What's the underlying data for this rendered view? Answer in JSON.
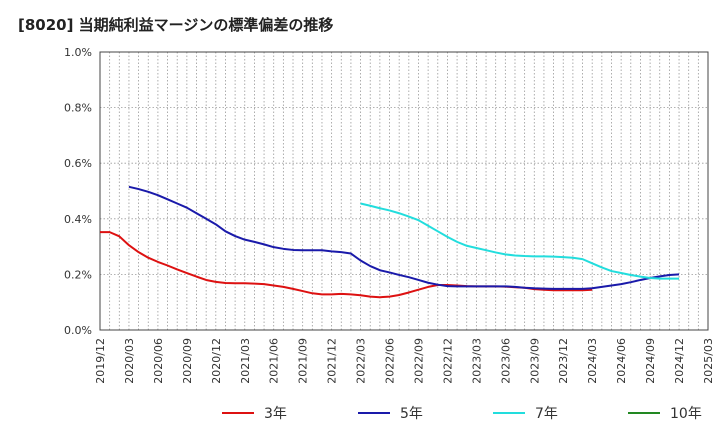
{
  "chart_data": {
    "type": "line",
    "title": "[8020]  当期純利益マージンの標準偏差の推移",
    "xlabel": "",
    "ylabel": "",
    "ylim": [
      0,
      1.0
    ],
    "yticks": [
      "0.0%",
      "0.2%",
      "0.4%",
      "0.6%",
      "0.8%",
      "1.0%"
    ],
    "xticks": [
      "2019/12",
      "2020/03",
      "2020/06",
      "2020/09",
      "2020/12",
      "2021/03",
      "2021/06",
      "2021/09",
      "2021/12",
      "2022/03",
      "2022/06",
      "2022/09",
      "2022/12",
      "2023/03",
      "2023/06",
      "2023/09",
      "2023/12",
      "2024/03",
      "2024/06",
      "2024/09",
      "2024/12",
      "2025/03"
    ],
    "grid": true,
    "legend_position": "bottom",
    "series": [
      {
        "name": "3年",
        "color": "#dd1111",
        "points": [
          [
            "2019/12",
            0.352
          ],
          [
            "2020/01",
            0.352
          ],
          [
            "2020/02",
            0.337
          ],
          [
            "2020/03",
            0.305
          ],
          [
            "2020/04",
            0.28
          ],
          [
            "2020/05",
            0.26
          ],
          [
            "2020/06",
            0.245
          ],
          [
            "2020/07",
            0.232
          ],
          [
            "2020/08",
            0.218
          ],
          [
            "2020/09",
            0.205
          ],
          [
            "2020/10",
            0.192
          ],
          [
            "2020/11",
            0.18
          ],
          [
            "2020/12",
            0.173
          ],
          [
            "2021/01",
            0.169
          ],
          [
            "2021/02",
            0.168
          ],
          [
            "2021/03",
            0.168
          ],
          [
            "2021/04",
            0.167
          ],
          [
            "2021/05",
            0.165
          ],
          [
            "2021/06",
            0.16
          ],
          [
            "2021/07",
            0.155
          ],
          [
            "2021/08",
            0.148
          ],
          [
            "2021/09",
            0.14
          ],
          [
            "2021/10",
            0.132
          ],
          [
            "2021/11",
            0.128
          ],
          [
            "2021/12",
            0.128
          ],
          [
            "2022/01",
            0.13
          ],
          [
            "2022/02",
            0.128
          ],
          [
            "2022/03",
            0.125
          ],
          [
            "2022/04",
            0.12
          ],
          [
            "2022/05",
            0.118
          ],
          [
            "2022/06",
            0.12
          ],
          [
            "2022/07",
            0.126
          ],
          [
            "2022/08",
            0.135
          ],
          [
            "2022/09",
            0.145
          ],
          [
            "2022/10",
            0.155
          ],
          [
            "2022/11",
            0.162
          ],
          [
            "2022/12",
            0.162
          ],
          [
            "2023/01",
            0.16
          ],
          [
            "2023/02",
            0.158
          ],
          [
            "2023/03",
            0.157
          ],
          [
            "2023/04",
            0.157
          ],
          [
            "2023/05",
            0.157
          ],
          [
            "2023/06",
            0.156
          ],
          [
            "2023/07",
            0.154
          ],
          [
            "2023/08",
            0.152
          ],
          [
            "2023/09",
            0.147
          ],
          [
            "2023/10",
            0.145
          ],
          [
            "2023/11",
            0.143
          ],
          [
            "2023/12",
            0.143
          ],
          [
            "2024/01",
            0.143
          ],
          [
            "2024/02",
            0.143
          ],
          [
            "2024/03",
            0.145
          ]
        ]
      },
      {
        "name": "5年",
        "color": "#1a1aaa",
        "points": [
          [
            "2020/03",
            0.515
          ],
          [
            "2020/04",
            0.507
          ],
          [
            "2020/05",
            0.497
          ],
          [
            "2020/06",
            0.485
          ],
          [
            "2020/07",
            0.47
          ],
          [
            "2020/08",
            0.455
          ],
          [
            "2020/09",
            0.44
          ],
          [
            "2020/10",
            0.42
          ],
          [
            "2020/11",
            0.4
          ],
          [
            "2020/12",
            0.38
          ],
          [
            "2021/01",
            0.355
          ],
          [
            "2021/02",
            0.338
          ],
          [
            "2021/03",
            0.325
          ],
          [
            "2021/04",
            0.317
          ],
          [
            "2021/05",
            0.308
          ],
          [
            "2021/06",
            0.298
          ],
          [
            "2021/07",
            0.292
          ],
          [
            "2021/08",
            0.288
          ],
          [
            "2021/09",
            0.287
          ],
          [
            "2021/10",
            0.287
          ],
          [
            "2021/11",
            0.287
          ],
          [
            "2021/12",
            0.283
          ],
          [
            "2022/01",
            0.28
          ],
          [
            "2022/02",
            0.275
          ],
          [
            "2022/03",
            0.25
          ],
          [
            "2022/04",
            0.23
          ],
          [
            "2022/05",
            0.215
          ],
          [
            "2022/06",
            0.207
          ],
          [
            "2022/07",
            0.198
          ],
          [
            "2022/08",
            0.19
          ],
          [
            "2022/09",
            0.18
          ],
          [
            "2022/10",
            0.17
          ],
          [
            "2022/11",
            0.163
          ],
          [
            "2022/12",
            0.158
          ],
          [
            "2023/01",
            0.157
          ],
          [
            "2023/02",
            0.157
          ],
          [
            "2023/03",
            0.157
          ],
          [
            "2023/04",
            0.157
          ],
          [
            "2023/05",
            0.157
          ],
          [
            "2023/06",
            0.157
          ],
          [
            "2023/07",
            0.155
          ],
          [
            "2023/08",
            0.152
          ],
          [
            "2023/09",
            0.15
          ],
          [
            "2023/10",
            0.149
          ],
          [
            "2023/11",
            0.148
          ],
          [
            "2023/12",
            0.148
          ],
          [
            "2024/01",
            0.148
          ],
          [
            "2024/02",
            0.148
          ],
          [
            "2024/03",
            0.15
          ],
          [
            "2024/04",
            0.155
          ],
          [
            "2024/05",
            0.16
          ],
          [
            "2024/06",
            0.165
          ],
          [
            "2024/07",
            0.172
          ],
          [
            "2024/08",
            0.18
          ],
          [
            "2024/09",
            0.187
          ],
          [
            "2024/10",
            0.193
          ],
          [
            "2024/11",
            0.198
          ],
          [
            "2024/12",
            0.2
          ]
        ]
      },
      {
        "name": "7年",
        "color": "#22dddd",
        "points": [
          [
            "2022/03",
            0.455
          ],
          [
            "2022/04",
            0.447
          ],
          [
            "2022/05",
            0.438
          ],
          [
            "2022/06",
            0.43
          ],
          [
            "2022/07",
            0.42
          ],
          [
            "2022/08",
            0.408
          ],
          [
            "2022/09",
            0.395
          ],
          [
            "2022/10",
            0.375
          ],
          [
            "2022/11",
            0.355
          ],
          [
            "2022/12",
            0.335
          ],
          [
            "2023/01",
            0.317
          ],
          [
            "2023/02",
            0.303
          ],
          [
            "2023/03",
            0.295
          ],
          [
            "2023/04",
            0.287
          ],
          [
            "2023/05",
            0.279
          ],
          [
            "2023/06",
            0.272
          ],
          [
            "2023/07",
            0.268
          ],
          [
            "2023/08",
            0.266
          ],
          [
            "2023/09",
            0.265
          ],
          [
            "2023/10",
            0.265
          ],
          [
            "2023/11",
            0.264
          ],
          [
            "2023/12",
            0.262
          ],
          [
            "2024/01",
            0.26
          ],
          [
            "2024/02",
            0.255
          ],
          [
            "2024/03",
            0.24
          ],
          [
            "2024/04",
            0.225
          ],
          [
            "2024/05",
            0.212
          ],
          [
            "2024/06",
            0.205
          ],
          [
            "2024/07",
            0.198
          ],
          [
            "2024/08",
            0.192
          ],
          [
            "2024/09",
            0.187
          ],
          [
            "2024/10",
            0.185
          ],
          [
            "2024/11",
            0.185
          ],
          [
            "2024/12",
            0.185
          ]
        ]
      },
      {
        "name": "10年",
        "color": "#228822",
        "points": []
      }
    ]
  }
}
